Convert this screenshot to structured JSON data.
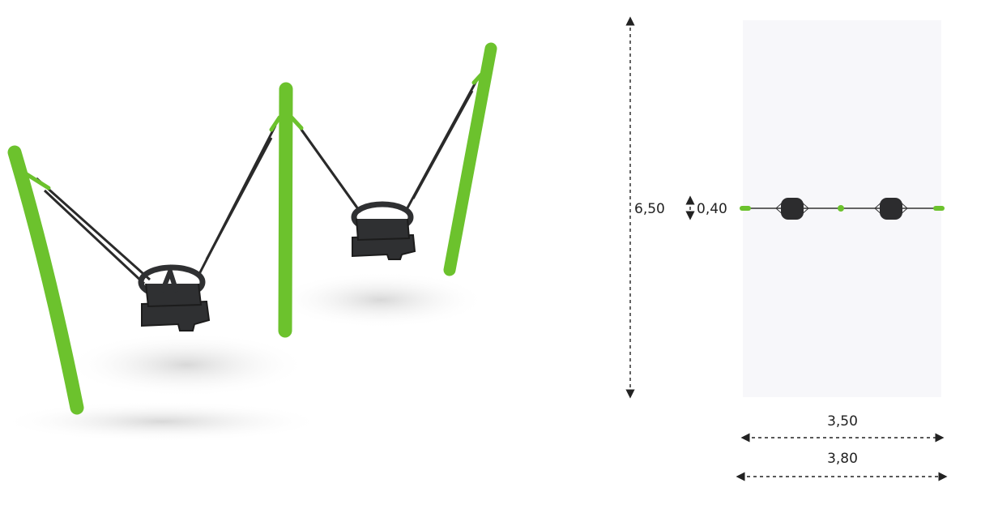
{
  "dimensions": {
    "height_label": "6,50",
    "seat_label": "0,40",
    "inner_width_label": "3,50",
    "outer_width_label": "3,80"
  }
}
